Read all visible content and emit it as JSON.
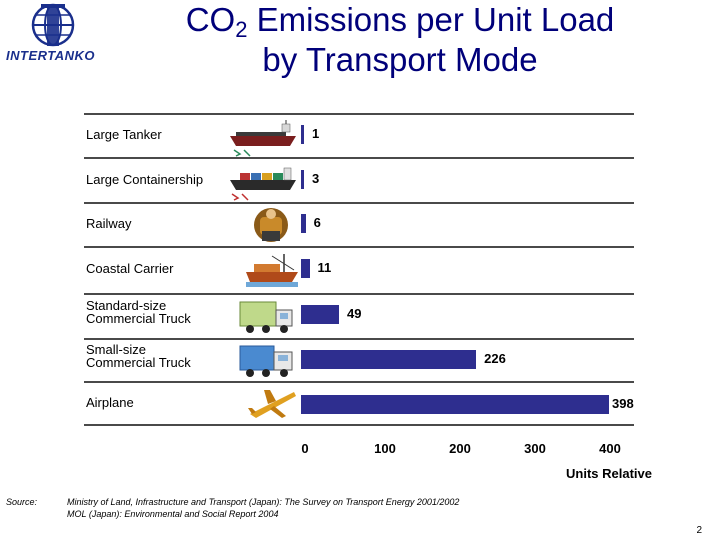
{
  "brand": {
    "logo_text": "INTERTANKO"
  },
  "title_main": "CO",
  "title_sub": "2",
  "title_rest": " Emissions per Unit Load",
  "title_line2": "by Transport Mode",
  "chart_data": {
    "type": "bar",
    "orientation": "horizontal",
    "categories": [
      "Large Tanker",
      "Large Containership",
      "Railway",
      "Coastal Carrier",
      "Standard-size Commercial Truck",
      "Small-size Commercial Truck",
      "Airplane"
    ],
    "category_lines": [
      [
        "Large Tanker"
      ],
      [
        "Large Containership"
      ],
      [
        "Railway"
      ],
      [
        "Coastal Carrier"
      ],
      [
        "Standard-size",
        "Commercial Truck"
      ],
      [
        "Small-size",
        "Commercial Truck"
      ],
      [
        "Airplane"
      ]
    ],
    "values": [
      1,
      3,
      6,
      11,
      49,
      226,
      398
    ],
    "xticks": [
      "0",
      "100",
      "200",
      "300",
      "400"
    ],
    "xlim": [
      0,
      430
    ],
    "xlabel": "Units Relative",
    "bar_color": "#2e2e8f",
    "icons": [
      "tanker-ship-icon",
      "container-ship-icon",
      "railway-worker-icon",
      "coastal-carrier-icon",
      "truck-icon",
      "small-truck-icon",
      "airplane-icon"
    ]
  },
  "source": {
    "label": "Source:",
    "lines": [
      "Ministry of Land, Infrastructure and Transport (Japan): The Survey on Transport Energy 2001/2002",
      "MOL (Japan): Environmental and Social Report 2004"
    ]
  },
  "page_number": "2",
  "colors": {
    "title": "#00007a",
    "bars": "#2e2e8f",
    "logo": "#1a2f8c"
  }
}
